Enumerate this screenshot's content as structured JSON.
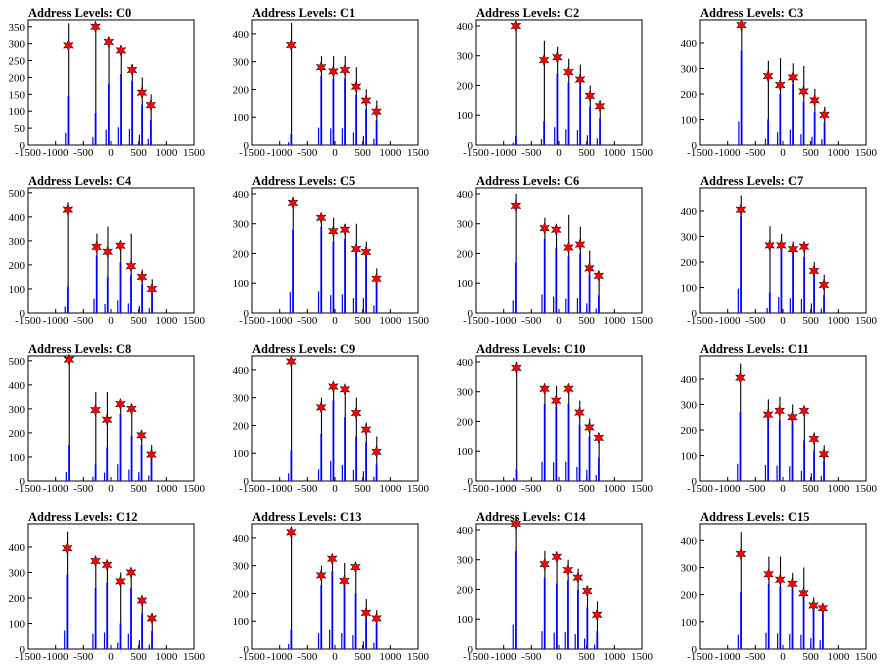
{
  "figure": {
    "background": "#ffffff",
    "bar_color": "#0000ff",
    "peak_color": "#000000",
    "marker_color": "#ff0000",
    "marker_stroke": "#000000"
  },
  "chart_data": [
    {
      "title": "Address Levels: C0",
      "type": "bar",
      "xlim": [
        -1500,
        1500
      ],
      "ylim": [
        0,
        370
      ],
      "xticks": [
        -1500,
        -1000,
        -500,
        0,
        500,
        1000,
        1500
      ],
      "yticks": [
        0,
        50,
        100,
        150,
        200,
        250,
        300,
        350
      ],
      "peaks": [
        {
          "x": -770,
          "top": 360,
          "mid": 145,
          "marker": 295
        },
        {
          "x": -280,
          "top": 355,
          "mid": 95,
          "marker": 350
        },
        {
          "x": -40,
          "top": 320,
          "mid": 180,
          "marker": 305
        },
        {
          "x": 180,
          "top": 275,
          "mid": 210,
          "marker": 280
        },
        {
          "x": 380,
          "top": 240,
          "mid": 190,
          "marker": 222
        },
        {
          "x": 560,
          "top": 200,
          "mid": 120,
          "marker": 155
        },
        {
          "x": 720,
          "top": 150,
          "mid": 75,
          "marker": 118
        }
      ]
    },
    {
      "title": "Address Levels: C1",
      "type": "bar",
      "xlim": [
        -1500,
        1500
      ],
      "ylim": [
        0,
        450
      ],
      "xticks": [
        -1500,
        -1000,
        -500,
        0,
        500,
        1000,
        1500
      ],
      "yticks": [
        0,
        100,
        200,
        300,
        400
      ],
      "peaks": [
        {
          "x": -790,
          "top": 440,
          "mid": 40,
          "marker": 360
        },
        {
          "x": -250,
          "top": 320,
          "mid": 250,
          "marker": 280
        },
        {
          "x": -30,
          "top": 320,
          "mid": 240,
          "marker": 265
        },
        {
          "x": 180,
          "top": 320,
          "mid": 240,
          "marker": 270
        },
        {
          "x": 380,
          "top": 280,
          "mid": 180,
          "marker": 210
        },
        {
          "x": 560,
          "top": 200,
          "mid": 130,
          "marker": 160
        },
        {
          "x": 750,
          "top": 160,
          "mid": 90,
          "marker": 120
        }
      ]
    },
    {
      "title": "Address Levels: C2",
      "type": "bar",
      "xlim": [
        -1500,
        1500
      ],
      "ylim": [
        0,
        420
      ],
      "xticks": [
        -1500,
        -1000,
        -500,
        0,
        500,
        1000,
        1500
      ],
      "yticks": [
        0,
        100,
        200,
        300,
        400
      ],
      "peaks": [
        {
          "x": -780,
          "top": 405,
          "mid": 30,
          "marker": 400
        },
        {
          "x": -270,
          "top": 350,
          "mid": 80,
          "marker": 285
        },
        {
          "x": -30,
          "top": 330,
          "mid": 240,
          "marker": 295
        },
        {
          "x": 170,
          "top": 290,
          "mid": 210,
          "marker": 245
        },
        {
          "x": 380,
          "top": 270,
          "mid": 200,
          "marker": 220
        },
        {
          "x": 560,
          "top": 200,
          "mid": 130,
          "marker": 165
        },
        {
          "x": 740,
          "top": 150,
          "mid": 90,
          "marker": 130
        }
      ]
    },
    {
      "title": "Address Levels: C3",
      "type": "bar",
      "xlim": [
        -1500,
        1500
      ],
      "ylim": [
        0,
        490
      ],
      "xticks": [
        -1500,
        -1000,
        -500,
        0,
        500,
        1000,
        1500
      ],
      "yticks": [
        0,
        100,
        200,
        300,
        400
      ],
      "peaks": [
        {
          "x": -750,
          "top": 480,
          "mid": 370,
          "marker": 470
        },
        {
          "x": -270,
          "top": 330,
          "mid": 100,
          "marker": 270
        },
        {
          "x": -50,
          "top": 340,
          "mid": 200,
          "marker": 235
        },
        {
          "x": 180,
          "top": 320,
          "mid": 240,
          "marker": 265
        },
        {
          "x": 370,
          "top": 310,
          "mid": 170,
          "marker": 210
        },
        {
          "x": 570,
          "top": 220,
          "mid": 130,
          "marker": 175
        },
        {
          "x": 750,
          "top": 150,
          "mid": 90,
          "marker": 118
        }
      ]
    },
    {
      "title": "Address Levels: C4",
      "type": "bar",
      "xlim": [
        -1500,
        1500
      ],
      "ylim": [
        0,
        520
      ],
      "xticks": [
        -1500,
        -1000,
        -500,
        0,
        500,
        1000,
        1500
      ],
      "yticks": [
        0,
        100,
        200,
        300,
        400,
        500
      ],
      "peaks": [
        {
          "x": -780,
          "top": 460,
          "mid": 110,
          "marker": 430
        },
        {
          "x": -260,
          "top": 330,
          "mid": 240,
          "marker": 275
        },
        {
          "x": -60,
          "top": 360,
          "mid": 150,
          "marker": 255
        },
        {
          "x": 170,
          "top": 300,
          "mid": 210,
          "marker": 280
        },
        {
          "x": 360,
          "top": 330,
          "mid": 160,
          "marker": 195
        },
        {
          "x": 560,
          "top": 180,
          "mid": 120,
          "marker": 150
        },
        {
          "x": 740,
          "top": 140,
          "mid": 80,
          "marker": 100
        }
      ]
    },
    {
      "title": "Address Levels: C5",
      "type": "bar",
      "xlim": [
        -1500,
        1500
      ],
      "ylim": [
        0,
        420
      ],
      "xticks": [
        -1500,
        -1000,
        -500,
        0,
        500,
        1000,
        1500
      ],
      "yticks": [
        0,
        100,
        200,
        300,
        400
      ],
      "peaks": [
        {
          "x": -760,
          "top": 390,
          "mid": 280,
          "marker": 370
        },
        {
          "x": -250,
          "top": 330,
          "mid": 290,
          "marker": 320
        },
        {
          "x": -30,
          "top": 320,
          "mid": 240,
          "marker": 275
        },
        {
          "x": 180,
          "top": 300,
          "mid": 250,
          "marker": 280
        },
        {
          "x": 380,
          "top": 300,
          "mid": 200,
          "marker": 215
        },
        {
          "x": 560,
          "top": 240,
          "mid": 200,
          "marker": 205
        },
        {
          "x": 750,
          "top": 150,
          "mid": 100,
          "marker": 115
        }
      ]
    },
    {
      "title": "Address Levels: C6",
      "type": "bar",
      "xlim": [
        -1500,
        1500
      ],
      "ylim": [
        0,
        420
      ],
      "xticks": [
        -1500,
        -1000,
        -500,
        0,
        500,
        1000,
        1500
      ],
      "yticks": [
        0,
        100,
        200,
        300,
        400
      ],
      "peaks": [
        {
          "x": -780,
          "top": 400,
          "mid": 170,
          "marker": 360
        },
        {
          "x": -260,
          "top": 320,
          "mid": 250,
          "marker": 285
        },
        {
          "x": -50,
          "top": 300,
          "mid": 220,
          "marker": 280
        },
        {
          "x": 170,
          "top": 330,
          "mid": 190,
          "marker": 220
        },
        {
          "x": 380,
          "top": 290,
          "mid": 200,
          "marker": 230
        },
        {
          "x": 550,
          "top": 210,
          "mid": 130,
          "marker": 150
        },
        {
          "x": 720,
          "top": 140,
          "mid": 60,
          "marker": 125
        }
      ]
    },
    {
      "title": "Address Levels: C7",
      "type": "bar",
      "xlim": [
        -1500,
        1500
      ],
      "ylim": [
        0,
        490
      ],
      "xticks": [
        -1500,
        -1000,
        -500,
        0,
        500,
        1000,
        1500
      ],
      "yticks": [
        0,
        100,
        200,
        300,
        400
      ],
      "peaks": [
        {
          "x": -760,
          "top": 460,
          "mid": 380,
          "marker": 405
        },
        {
          "x": -240,
          "top": 340,
          "mid": 80,
          "marker": 265
        },
        {
          "x": -30,
          "top": 310,
          "mid": 250,
          "marker": 265
        },
        {
          "x": 180,
          "top": 280,
          "mid": 230,
          "marker": 250
        },
        {
          "x": 380,
          "top": 270,
          "mid": 220,
          "marker": 260
        },
        {
          "x": 560,
          "top": 200,
          "mid": 150,
          "marker": 165
        },
        {
          "x": 740,
          "top": 150,
          "mid": 70,
          "marker": 110
        }
      ]
    },
    {
      "title": "Address Levels: C8",
      "type": "bar",
      "xlim": [
        -1500,
        1500
      ],
      "ylim": [
        0,
        520
      ],
      "xticks": [
        -1500,
        -1000,
        -500,
        0,
        500,
        1000,
        1500
      ],
      "yticks": [
        0,
        100,
        200,
        300,
        400,
        500
      ],
      "peaks": [
        {
          "x": -760,
          "top": 520,
          "mid": 150,
          "marker": 505
        },
        {
          "x": -280,
          "top": 370,
          "mid": 70,
          "marker": 295
        },
        {
          "x": -70,
          "top": 370,
          "mid": 140,
          "marker": 255
        },
        {
          "x": 170,
          "top": 330,
          "mid": 280,
          "marker": 320
        },
        {
          "x": 370,
          "top": 320,
          "mid": 190,
          "marker": 300
        },
        {
          "x": 550,
          "top": 210,
          "mid": 150,
          "marker": 190
        },
        {
          "x": 730,
          "top": 150,
          "mid": 90,
          "marker": 110
        }
      ]
    },
    {
      "title": "Address Levels: C9",
      "type": "bar",
      "xlim": [
        -1500,
        1500
      ],
      "ylim": [
        0,
        450
      ],
      "xticks": [
        -1500,
        -1000,
        -500,
        0,
        500,
        1000,
        1500
      ],
      "yticks": [
        0,
        100,
        200,
        300,
        400
      ],
      "peaks": [
        {
          "x": -790,
          "top": 440,
          "mid": 110,
          "marker": 430
        },
        {
          "x": -250,
          "top": 300,
          "mid": 170,
          "marker": 265
        },
        {
          "x": -30,
          "top": 340,
          "mid": 290,
          "marker": 340
        },
        {
          "x": 180,
          "top": 340,
          "mid": 230,
          "marker": 330
        },
        {
          "x": 380,
          "top": 300,
          "mid": 160,
          "marker": 245
        },
        {
          "x": 560,
          "top": 210,
          "mid": 140,
          "marker": 185
        },
        {
          "x": 750,
          "top": 160,
          "mid": 60,
          "marker": 105
        }
      ]
    },
    {
      "title": "Address Levels: C10",
      "type": "bar",
      "xlim": [
        -1500,
        1500
      ],
      "ylim": [
        0,
        420
      ],
      "xticks": [
        -1500,
        -1000,
        -500,
        0,
        500,
        1000,
        1500
      ],
      "yticks": [
        0,
        100,
        200,
        300,
        400
      ],
      "peaks": [
        {
          "x": -770,
          "top": 400,
          "mid": 40,
          "marker": 380
        },
        {
          "x": -260,
          "top": 320,
          "mid": 260,
          "marker": 310
        },
        {
          "x": -50,
          "top": 320,
          "mid": 250,
          "marker": 270
        },
        {
          "x": 170,
          "top": 320,
          "mid": 260,
          "marker": 310
        },
        {
          "x": 370,
          "top": 270,
          "mid": 190,
          "marker": 230
        },
        {
          "x": 550,
          "top": 210,
          "mid": 150,
          "marker": 180
        },
        {
          "x": 720,
          "top": 160,
          "mid": 80,
          "marker": 145
        }
      ]
    },
    {
      "title": "Address Levels: C11",
      "type": "bar",
      "xlim": [
        -1500,
        1500
      ],
      "ylim": [
        0,
        490
      ],
      "xticks": [
        -1500,
        -1000,
        -500,
        0,
        500,
        1000,
        1500
      ],
      "yticks": [
        0,
        100,
        200,
        300,
        400
      ],
      "peaks": [
        {
          "x": -770,
          "top": 460,
          "mid": 270,
          "marker": 405
        },
        {
          "x": -270,
          "top": 320,
          "mid": 250,
          "marker": 260
        },
        {
          "x": -60,
          "top": 330,
          "mid": 240,
          "marker": 275
        },
        {
          "x": 170,
          "top": 300,
          "mid": 230,
          "marker": 250
        },
        {
          "x": 380,
          "top": 290,
          "mid": 160,
          "marker": 275
        },
        {
          "x": 560,
          "top": 190,
          "mid": 120,
          "marker": 165
        },
        {
          "x": 740,
          "top": 140,
          "mid": 80,
          "marker": 105
        }
      ]
    },
    {
      "title": "Address Levels: C12",
      "type": "bar",
      "xlim": [
        -1500,
        1500
      ],
      "ylim": [
        0,
        490
      ],
      "xticks": [
        -1500,
        -1000,
        -500,
        0,
        500,
        1000,
        1500
      ],
      "yticks": [
        0,
        100,
        200,
        300,
        400
      ],
      "peaks": [
        {
          "x": -790,
          "top": 460,
          "mid": 290,
          "marker": 395
        },
        {
          "x": -280,
          "top": 330,
          "mid": 240,
          "marker": 345
        },
        {
          "x": -70,
          "top": 340,
          "mid": 260,
          "marker": 330
        },
        {
          "x": 170,
          "top": 300,
          "mid": 100,
          "marker": 265
        },
        {
          "x": 360,
          "top": 310,
          "mid": 240,
          "marker": 300
        },
        {
          "x": 560,
          "top": 200,
          "mid": 140,
          "marker": 190
        },
        {
          "x": 740,
          "top": 140,
          "mid": 70,
          "marker": 120
        }
      ]
    },
    {
      "title": "Address Levels: C13",
      "type": "bar",
      "xlim": [
        -1500,
        1500
      ],
      "ylim": [
        0,
        450
      ],
      "xticks": [
        -1500,
        -1000,
        -500,
        0,
        500,
        1000,
        1500
      ],
      "yticks": [
        0,
        100,
        200,
        300,
        400
      ],
      "peaks": [
        {
          "x": -790,
          "top": 440,
          "mid": 70,
          "marker": 420
        },
        {
          "x": -250,
          "top": 300,
          "mid": 230,
          "marker": 265
        },
        {
          "x": -50,
          "top": 330,
          "mid": 280,
          "marker": 325
        },
        {
          "x": 170,
          "top": 310,
          "mid": 230,
          "marker": 245
        },
        {
          "x": 370,
          "top": 300,
          "mid": 200,
          "marker": 295
        },
        {
          "x": 560,
          "top": 180,
          "mid": 110,
          "marker": 130
        },
        {
          "x": 750,
          "top": 140,
          "mid": 90,
          "marker": 110
        }
      ]
    },
    {
      "title": "Address Levels: C14",
      "type": "bar",
      "xlim": [
        -1500,
        1500
      ],
      "ylim": [
        0,
        420
      ],
      "xticks": [
        -1500,
        -1000,
        -500,
        0,
        500,
        1000,
        1500
      ],
      "yticks": [
        0,
        100,
        200,
        300,
        400
      ],
      "peaks": [
        {
          "x": -780,
          "top": 440,
          "mid": 330,
          "marker": 420
        },
        {
          "x": -260,
          "top": 330,
          "mid": 240,
          "marker": 285
        },
        {
          "x": -40,
          "top": 320,
          "mid": 220,
          "marker": 310
        },
        {
          "x": 160,
          "top": 300,
          "mid": 230,
          "marker": 265
        },
        {
          "x": 340,
          "top": 270,
          "mid": 200,
          "marker": 240
        },
        {
          "x": 510,
          "top": 210,
          "mid": 140,
          "marker": 195
        },
        {
          "x": 690,
          "top": 160,
          "mid": 60,
          "marker": 115
        }
      ]
    },
    {
      "title": "Address Levels: C15",
      "type": "bar",
      "xlim": [
        -1500,
        1500
      ],
      "ylim": [
        0,
        460
      ],
      "xticks": [
        -1500,
        -1000,
        -500,
        0,
        500,
        1000,
        1500
      ],
      "yticks": [
        0,
        100,
        200,
        300,
        400
      ],
      "peaks": [
        {
          "x": -760,
          "top": 430,
          "mid": 210,
          "marker": 350
        },
        {
          "x": -260,
          "top": 340,
          "mid": 240,
          "marker": 275
        },
        {
          "x": -50,
          "top": 340,
          "mid": 230,
          "marker": 255
        },
        {
          "x": 170,
          "top": 280,
          "mid": 220,
          "marker": 240
        },
        {
          "x": 370,
          "top": 300,
          "mid": 210,
          "marker": 205
        },
        {
          "x": 550,
          "top": 190,
          "mid": 160,
          "marker": 160
        },
        {
          "x": 720,
          "top": 150,
          "mid": 130,
          "marker": 150
        }
      ]
    }
  ]
}
